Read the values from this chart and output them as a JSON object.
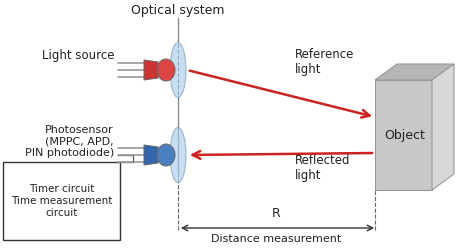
{
  "bg_color": "#ffffff",
  "title": "Optical system",
  "object_label": "Object",
  "light_source_label": "Light source",
  "photosensor_label": "Photosensor\n(MPPC, APD,\nPIN photodiode)",
  "reference_light_label": "Reference\nlight",
  "reflected_light_label": "Reflected\nlight",
  "timer_box_label": "Timer circuit\nTime measurement\ncircuit",
  "distance_label": "Distance measurement",
  "R_label": "R",
  "arrow_color": "#cc2222",
  "lens_color": "#aaccee",
  "lens_alpha": 0.65,
  "box_edge": "#333333",
  "line_color": "#555555",
  "text_color": "#222222",
  "dashed_color": "#666666",
  "obj_front": "#c8c8c8",
  "obj_top": "#b5b5b5",
  "obj_right": "#d8d8d8",
  "obj_edge": "#999999"
}
